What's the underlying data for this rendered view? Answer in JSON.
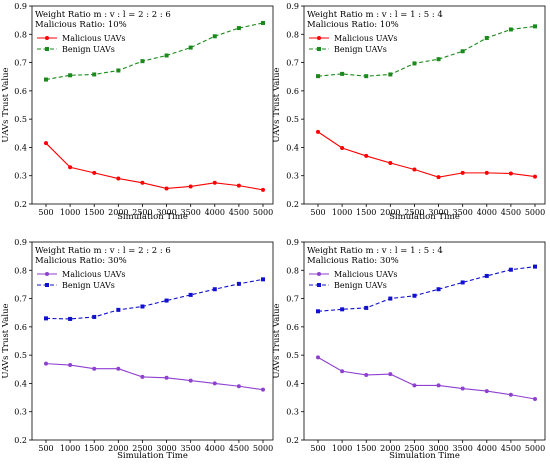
{
  "chart_data": [
    {
      "type": "line",
      "annotation_line1": "Weight Ratio m : v : l = 2 : 2 : 6",
      "annotation_line2": "Malicious Ratio: 10%",
      "xlabel": "Simulation Time",
      "ylabel": "UAVs Trust Value",
      "x": [
        500,
        1000,
        1500,
        2000,
        2500,
        3000,
        3500,
        4000,
        4500,
        5000
      ],
      "xticks": [
        "500",
        "1000",
        "1500",
        "2000",
        "2500",
        "3000",
        "3500",
        "4000",
        "4500",
        "5000"
      ],
      "ylim": [
        0.2,
        0.9
      ],
      "yticks": [
        "0.2",
        "0.3",
        "0.4",
        "0.5",
        "0.6",
        "0.7",
        "0.8",
        "0.9"
      ],
      "grid": false,
      "legend_position": "upper-left",
      "series": [
        {
          "name": "Malicious UAVs",
          "color": "#ff0000",
          "dash": "solid",
          "marker": "circle",
          "values": [
            0.415,
            0.33,
            0.31,
            0.29,
            0.275,
            0.255,
            0.262,
            0.275,
            0.265,
            0.25
          ]
        },
        {
          "name": "Benign UAVs",
          "color": "#1a8a1a",
          "dash": "dashed",
          "marker": "square",
          "values": [
            0.64,
            0.655,
            0.658,
            0.672,
            0.705,
            0.725,
            0.753,
            0.793,
            0.822,
            0.84
          ]
        }
      ]
    },
    {
      "type": "line",
      "annotation_line1": "Weight Ratio m : v : l = 1 : 5 : 4",
      "annotation_line2": "Malicious Ratio: 10%",
      "xlabel": "Simulation Time",
      "ylabel": "UAVs Trust Value",
      "x": [
        500,
        1000,
        1500,
        2000,
        2500,
        3000,
        3500,
        4000,
        4500,
        5000
      ],
      "xticks": [
        "500",
        "1000",
        "1500",
        "2000",
        "2500",
        "3000",
        "3500",
        "4000",
        "4500",
        "5000"
      ],
      "ylim": [
        0.2,
        0.9
      ],
      "yticks": [
        "0.2",
        "0.3",
        "0.4",
        "0.5",
        "0.6",
        "0.7",
        "0.8",
        "0.9"
      ],
      "grid": false,
      "legend_position": "upper-left",
      "series": [
        {
          "name": "Malicious UAVs",
          "color": "#ff0000",
          "dash": "solid",
          "marker": "circle",
          "values": [
            0.455,
            0.398,
            0.37,
            0.345,
            0.322,
            0.295,
            0.31,
            0.31,
            0.308,
            0.297
          ]
        },
        {
          "name": "Benign UAVs",
          "color": "#1a8a1a",
          "dash": "dashed",
          "marker": "square",
          "values": [
            0.652,
            0.66,
            0.652,
            0.658,
            0.697,
            0.712,
            0.74,
            0.787,
            0.817,
            0.828
          ]
        }
      ]
    },
    {
      "type": "line",
      "annotation_line1": "Weight Ratio m : v : l = 2 : 2 : 6",
      "annotation_line2": "Malicious Ratio: 30%",
      "xlabel": "Simulation Time",
      "ylabel": "UAVs Trust Value",
      "x": [
        500,
        1000,
        1500,
        2000,
        2500,
        3000,
        3500,
        4000,
        4500,
        5000
      ],
      "xticks": [
        "500",
        "1000",
        "1500",
        "2000",
        "2500",
        "3000",
        "3500",
        "4000",
        "4500",
        "5000"
      ],
      "ylim": [
        0.2,
        0.9
      ],
      "yticks": [
        "0.2",
        "0.3",
        "0.4",
        "0.5",
        "0.6",
        "0.7",
        "0.8",
        "0.9"
      ],
      "grid": false,
      "legend_position": "upper-left",
      "series": [
        {
          "name": "Malicious UAVs",
          "color": "#8f3fd1",
          "dash": "solid",
          "marker": "circle",
          "values": [
            0.47,
            0.465,
            0.452,
            0.452,
            0.423,
            0.42,
            0.41,
            0.4,
            0.39,
            0.378
          ]
        },
        {
          "name": "Benign UAVs",
          "color": "#1010d0",
          "dash": "dashed",
          "marker": "square",
          "values": [
            0.63,
            0.628,
            0.635,
            0.66,
            0.672,
            0.693,
            0.713,
            0.733,
            0.752,
            0.768
          ]
        }
      ]
    },
    {
      "type": "line",
      "annotation_line1": "Weight Ratio m : v : l = 1 : 5 : 4",
      "annotation_line2": "Malicious Ratio: 30%",
      "xlabel": "Simulation Time",
      "ylabel": "UAVs Trust Value",
      "x": [
        500,
        1000,
        1500,
        2000,
        2500,
        3000,
        3500,
        4000,
        4500,
        5000
      ],
      "xticks": [
        "500",
        "1000",
        "1500",
        "2000",
        "2500",
        "3000",
        "3500",
        "4000",
        "4500",
        "5000"
      ],
      "ylim": [
        0.2,
        0.9
      ],
      "yticks": [
        "0.2",
        "0.3",
        "0.4",
        "0.5",
        "0.6",
        "0.7",
        "0.8",
        "0.9"
      ],
      "grid": false,
      "legend_position": "upper-left",
      "series": [
        {
          "name": "Malicious UAVs",
          "color": "#8f3fd1",
          "dash": "solid",
          "marker": "circle",
          "values": [
            0.492,
            0.443,
            0.43,
            0.433,
            0.393,
            0.393,
            0.382,
            0.373,
            0.36,
            0.345
          ]
        },
        {
          "name": "Benign UAVs",
          "color": "#1010d0",
          "dash": "dashed",
          "marker": "square",
          "values": [
            0.655,
            0.662,
            0.667,
            0.7,
            0.71,
            0.733,
            0.757,
            0.78,
            0.802,
            0.813
          ]
        }
      ]
    }
  ]
}
